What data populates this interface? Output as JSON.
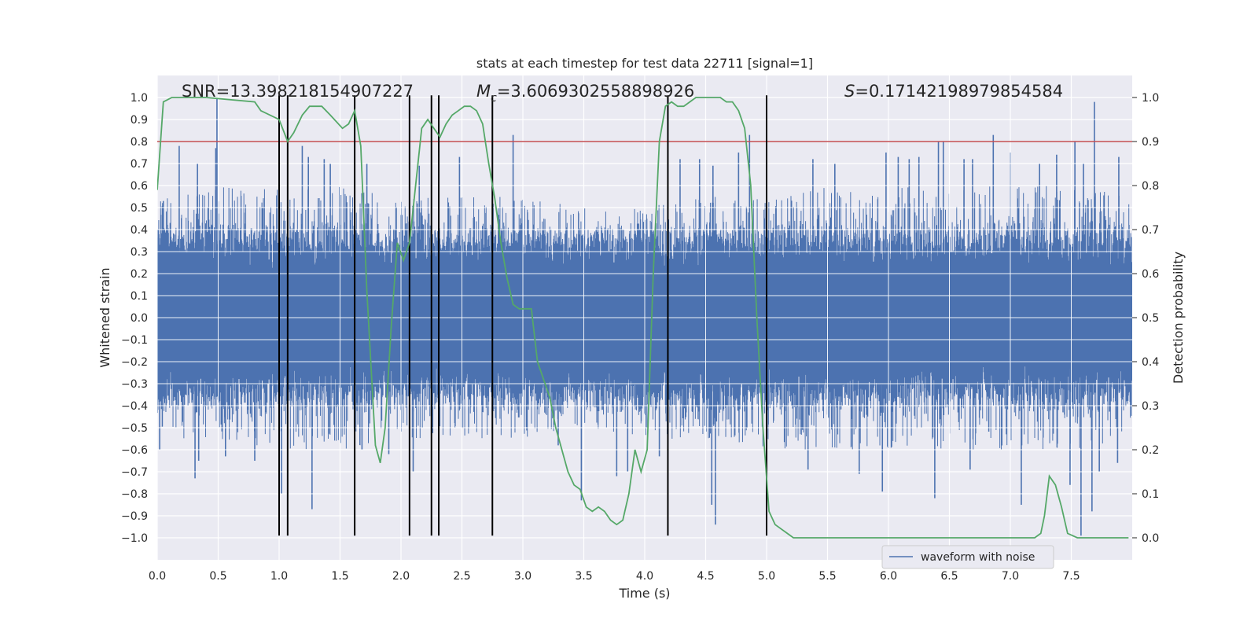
{
  "chart_data": {
    "type": "line",
    "title": "stats at each timestep for test data 22711 [signal=1]",
    "xlabel": "Time (s)",
    "ylabel": "Whitened strain",
    "y2label": "Detection probability",
    "xlim": [
      0.0,
      8.0
    ],
    "ylim": [
      -1.1,
      1.1
    ],
    "y2lim": [
      -0.05,
      1.05
    ],
    "x_ticks": [
      "0.0",
      "0.5",
      "1.0",
      "1.5",
      "2.0",
      "2.5",
      "3.0",
      "3.5",
      "4.0",
      "4.5",
      "5.0",
      "5.5",
      "6.0",
      "6.5",
      "7.0",
      "7.5"
    ],
    "y_ticks": [
      "1.0",
      "0.9",
      "0.8",
      "0.7",
      "0.6",
      "0.5",
      "0.4",
      "0.3",
      "0.2",
      "0.1",
      "0.0",
      "−0.1",
      "−0.2",
      "−0.3",
      "−0.4",
      "−0.5",
      "−0.6",
      "−0.7",
      "−0.8",
      "−0.9",
      "−1.0"
    ],
    "y2_ticks": [
      "1.0",
      "0.9",
      "0.8",
      "0.7",
      "0.6",
      "0.5",
      "0.4",
      "0.3",
      "0.2",
      "0.1",
      "0.0"
    ],
    "grid": true,
    "stats": {
      "snr": "SNR=13.398218154907227",
      "mc_symbol": "M",
      "mc_sub": "c",
      "mc_value": "=3.6069302558898926",
      "s_symbol": "S",
      "s_value": "=0.17142198979854584"
    },
    "legend": {
      "label": "waveform with noise",
      "position": "lower-right"
    },
    "series": [
      {
        "name": "waveform with noise",
        "color": "#4c72b0",
        "kind": "noise",
        "envelope_upper": {
          "x": [
            0.0,
            0.5,
            1.0,
            1.5,
            2.0,
            2.5,
            3.0,
            3.5,
            4.0,
            4.5,
            5.0,
            5.5,
            6.0,
            6.5,
            7.0,
            7.5,
            8.0
          ],
          "y": [
            0.55,
            0.6,
            0.6,
            0.6,
            0.55,
            0.55,
            0.55,
            0.5,
            0.5,
            0.55,
            0.55,
            0.6,
            0.6,
            0.6,
            0.6,
            0.6,
            0.55
          ]
        },
        "envelope_lower": {
          "x": [
            0.0,
            0.5,
            1.0,
            1.5,
            2.0,
            2.5,
            3.0,
            3.5,
            4.0,
            4.5,
            5.0,
            5.5,
            6.0,
            6.5,
            7.0,
            7.5,
            8.0
          ],
          "y": [
            -0.55,
            -0.55,
            -0.6,
            -0.6,
            -0.55,
            -0.55,
            -0.55,
            -0.5,
            -0.55,
            -0.55,
            -0.6,
            -0.6,
            -0.6,
            -0.6,
            -0.6,
            -0.6,
            -0.55
          ]
        },
        "peaks": [
          {
            "x": 0.05,
            "y": 0.53
          },
          {
            "x": 0.18,
            "y": 0.78
          },
          {
            "x": 0.33,
            "y": 0.7
          },
          {
            "x": 0.48,
            "y": 0.77
          },
          {
            "x": 0.49,
            "y": 1.0
          },
          {
            "x": 1.19,
            "y": 0.78
          },
          {
            "x": 1.24,
            "y": 0.73
          },
          {
            "x": 1.37,
            "y": 0.72
          },
          {
            "x": 1.42,
            "y": 0.7
          },
          {
            "x": 1.72,
            "y": 0.7
          },
          {
            "x": 2.15,
            "y": 0.69
          },
          {
            "x": 2.48,
            "y": 0.73
          },
          {
            "x": 2.92,
            "y": 0.83
          },
          {
            "x": 4.29,
            "y": 0.72
          },
          {
            "x": 4.45,
            "y": 0.72
          },
          {
            "x": 4.56,
            "y": 0.69
          },
          {
            "x": 4.77,
            "y": 0.75
          },
          {
            "x": 4.86,
            "y": 0.83
          },
          {
            "x": 5.38,
            "y": 0.72
          },
          {
            "x": 5.56,
            "y": 0.7
          },
          {
            "x": 5.98,
            "y": 0.75
          },
          {
            "x": 6.08,
            "y": 0.73
          },
          {
            "x": 6.17,
            "y": 0.72
          },
          {
            "x": 6.25,
            "y": 0.73
          },
          {
            "x": 6.41,
            "y": 0.8
          },
          {
            "x": 6.45,
            "y": 0.8
          },
          {
            "x": 6.62,
            "y": 0.72
          },
          {
            "x": 6.69,
            "y": 0.72
          },
          {
            "x": 6.86,
            "y": 0.83
          },
          {
            "x": 7.0,
            "y": 0.75
          },
          {
            "x": 7.24,
            "y": 0.7
          },
          {
            "x": 7.38,
            "y": 0.74
          },
          {
            "x": 7.53,
            "y": 0.8
          },
          {
            "x": 7.6,
            "y": 0.7
          },
          {
            "x": 7.69,
            "y": 0.98
          },
          {
            "x": 7.89,
            "y": 0.73
          }
        ],
        "troughs": [
          {
            "x": 0.02,
            "y": -0.6
          },
          {
            "x": 0.31,
            "y": -0.73
          },
          {
            "x": 0.34,
            "y": -0.65
          },
          {
            "x": 0.56,
            "y": -0.63
          },
          {
            "x": 0.8,
            "y": -0.65
          },
          {
            "x": 1.02,
            "y": -0.8
          },
          {
            "x": 1.27,
            "y": -0.87
          },
          {
            "x": 1.68,
            "y": -0.6
          },
          {
            "x": 1.9,
            "y": -0.62
          },
          {
            "x": 2.1,
            "y": -0.7
          },
          {
            "x": 3.29,
            "y": -0.58
          },
          {
            "x": 3.48,
            "y": -0.83
          },
          {
            "x": 3.77,
            "y": -0.72
          },
          {
            "x": 3.86,
            "y": -0.7
          },
          {
            "x": 4.12,
            "y": -0.63
          },
          {
            "x": 4.55,
            "y": -0.85
          },
          {
            "x": 4.58,
            "y": -0.94
          },
          {
            "x": 5.34,
            "y": -0.69
          },
          {
            "x": 5.76,
            "y": -0.71
          },
          {
            "x": 5.95,
            "y": -0.79
          },
          {
            "x": 6.38,
            "y": -0.82
          },
          {
            "x": 6.67,
            "y": -0.69
          },
          {
            "x": 7.09,
            "y": -0.85
          },
          {
            "x": 7.49,
            "y": -0.76
          },
          {
            "x": 7.58,
            "y": -0.99
          },
          {
            "x": 7.67,
            "y": -0.88
          },
          {
            "x": 7.73,
            "y": -0.7
          },
          {
            "x": 7.88,
            "y": -0.66
          }
        ]
      },
      {
        "name": "",
        "color": "#55a868",
        "axis": "right",
        "x": [
          0.0,
          0.05,
          0.12,
          0.4,
          0.8,
          0.85,
          1.0,
          1.07,
          1.12,
          1.19,
          1.25,
          1.35,
          1.42,
          1.52,
          1.57,
          1.62,
          1.67,
          1.72,
          1.79,
          1.83,
          1.87,
          1.92,
          1.97,
          2.02,
          2.07,
          2.12,
          2.17,
          2.22,
          2.27,
          2.32,
          2.37,
          2.42,
          2.47,
          2.52,
          2.57,
          2.62,
          2.67,
          2.72,
          2.77,
          2.82,
          2.87,
          2.92,
          2.97,
          3.02,
          3.07,
          3.12,
          3.17,
          3.22,
          3.27,
          3.32,
          3.37,
          3.42,
          3.47,
          3.52,
          3.57,
          3.62,
          3.67,
          3.72,
          3.77,
          3.82,
          3.87,
          3.92,
          3.97,
          4.02,
          4.07,
          4.12,
          4.17,
          4.22,
          4.27,
          4.32,
          4.37,
          4.42,
          4.47,
          4.52,
          4.57,
          4.62,
          4.67,
          4.72,
          4.77,
          4.82,
          4.87,
          4.92,
          4.97,
          5.02,
          5.07,
          5.12,
          5.17,
          5.22,
          5.27,
          5.32,
          5.37,
          5.42,
          5.5,
          5.7,
          5.9,
          6.0,
          6.1,
          6.2,
          6.3,
          6.4,
          6.6,
          6.8,
          7.0,
          7.1,
          7.2,
          7.25,
          7.28,
          7.32,
          7.37,
          7.42,
          7.47,
          7.55,
          7.7,
          7.9,
          7.97
        ],
        "y": [
          0.79,
          0.99,
          1.0,
          1.0,
          0.99,
          0.97,
          0.95,
          0.9,
          0.92,
          0.96,
          0.98,
          0.98,
          0.96,
          0.93,
          0.94,
          0.97,
          0.89,
          0.56,
          0.21,
          0.17,
          0.25,
          0.48,
          0.67,
          0.63,
          0.67,
          0.8,
          0.93,
          0.95,
          0.93,
          0.91,
          0.94,
          0.96,
          0.97,
          0.98,
          0.98,
          0.97,
          0.94,
          0.85,
          0.77,
          0.67,
          0.59,
          0.53,
          0.52,
          0.52,
          0.52,
          0.4,
          0.36,
          0.32,
          0.25,
          0.2,
          0.15,
          0.12,
          0.11,
          0.07,
          0.06,
          0.07,
          0.06,
          0.04,
          0.03,
          0.04,
          0.1,
          0.2,
          0.15,
          0.2,
          0.6,
          0.9,
          0.98,
          0.99,
          0.98,
          0.98,
          0.99,
          1.0,
          1.0,
          1.0,
          1.0,
          1.0,
          0.99,
          0.99,
          0.97,
          0.93,
          0.8,
          0.5,
          0.25,
          0.06,
          0.03,
          0.02,
          0.01,
          0.0,
          0.0,
          0.0,
          0.0,
          0.0,
          0.0,
          0.0,
          0.0,
          0.0,
          0.0,
          0.0,
          0.0,
          0.0,
          0.0,
          0.0,
          0.0,
          0.0,
          0.0,
          0.01,
          0.05,
          0.14,
          0.12,
          0.07,
          0.01,
          0.0,
          0.0,
          0.0,
          0.0
        ]
      }
    ],
    "threshold": {
      "axis": "right",
      "value": 0.9,
      "color": "#c44e52"
    },
    "vlines": {
      "x": [
        1.0,
        1.07,
        1.62,
        2.07,
        2.25,
        2.31,
        2.75,
        4.19,
        5.0
      ],
      "y_range": [
        -0.99,
        1.01
      ],
      "color": "#000000"
    }
  }
}
